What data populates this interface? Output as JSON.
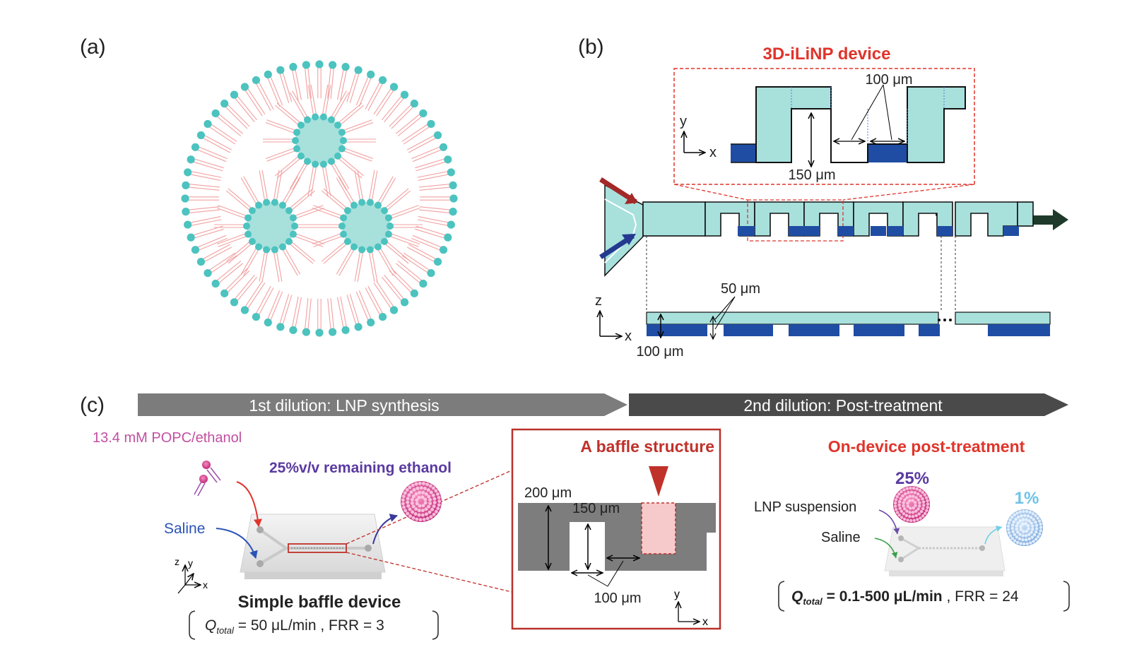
{
  "panel_a": {
    "label": "(a)"
  },
  "panel_b": {
    "label": "(b)",
    "device_title": "3D-iLiNP device",
    "dim_width": "100 μm",
    "dim_height": "150 μm",
    "dim_depth": "50 μm",
    "dim_z": "100 μm",
    "axis_y": "y",
    "axis_x": "x",
    "axis_z": "z",
    "axis_x2": "x"
  },
  "panel_c": {
    "label": "(c)",
    "arrow1": "1st dilution: LNP synthesis",
    "arrow2": "2nd dilution: Post-treatment",
    "lipid": "13.4 mM POPC/ethanol",
    "remaining": "25%v/v remaining ethanol",
    "saline": "Saline",
    "axis_z": "z",
    "axis_y": "y",
    "axis_x": "x",
    "device_name": "Simple baffle device",
    "cond1_q": "Q",
    "cond1_sub": "total",
    "cond1_rest": " = 50 μL/min , FRR = 3",
    "baffle_title": "A baffle structure",
    "baffle_200": "200 μm",
    "baffle_150": "150 μm",
    "baffle_100": "100 μm",
    "baffle_axis_y": "y",
    "baffle_axis_x": "x",
    "post_title": "On-device post-treatment",
    "pct25": "25%",
    "pct1": "1%",
    "lnp_suspension": "LNP suspension",
    "saline2": "Saline",
    "cond2_q": "Q",
    "cond2_sub": "total",
    "cond2_bold": " = 0.1-500 μL/min",
    "cond2_rest": " , FRR = 24"
  },
  "colors": {
    "teal": "#4cc3bf",
    "light_teal": "#a8e0dc",
    "navy": "#1f4da3",
    "red_accent": "#e0342b",
    "dark_red": "#b8312a",
    "purple": "#5a3aa0",
    "magenta": "#c24fa0",
    "arrow_grey": "#7a7a7a",
    "arrow_dark": "#4a4a4a"
  }
}
